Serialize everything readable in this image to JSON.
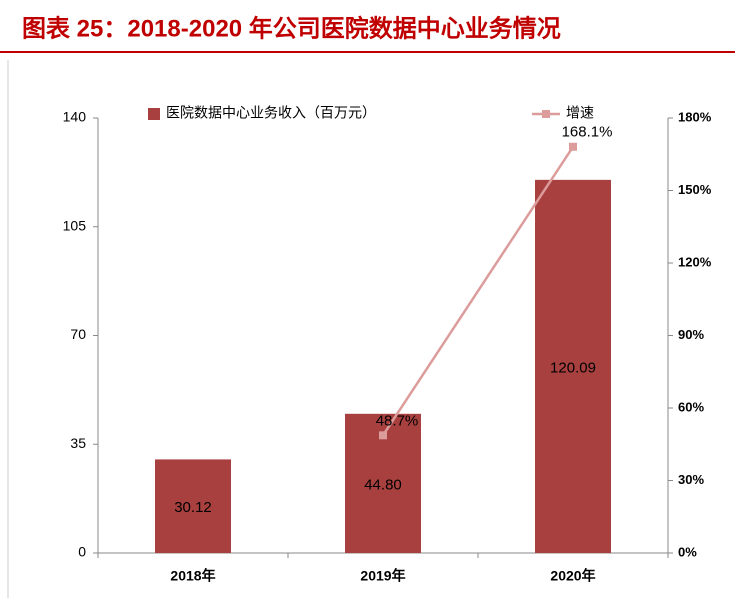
{
  "chart_data": {
    "type": "bar",
    "title": "图表 25：2018-2020 年公司医院数据中心业务情况",
    "categories": [
      "2018年",
      "2019年",
      "2020年"
    ],
    "series": [
      {
        "name": "医院数据中心业务收入（百万元）",
        "type": "bar",
        "color": "#a8403f",
        "values": [
          30.12,
          44.8,
          120.09
        ],
        "value_labels": [
          "30.12",
          "44.80",
          "120.09"
        ]
      },
      {
        "name": "增速",
        "type": "line",
        "axis": "y2",
        "color": "#dc9c9b",
        "values": [
          null,
          48.7,
          168.1
        ],
        "value_labels": [
          null,
          "48.7%",
          "168.1%"
        ]
      }
    ],
    "ylim": [
      0,
      140
    ],
    "yticks": [
      0,
      35,
      70,
      105,
      140
    ],
    "y2lim": [
      0,
      180
    ],
    "y2ticks": [
      {
        "value": 0,
        "label": "0%"
      },
      {
        "value": 30,
        "label": "30%"
      },
      {
        "value": 60,
        "label": "60%"
      },
      {
        "value": 90,
        "label": "90%"
      },
      {
        "value": 120,
        "label": "120%"
      },
      {
        "value": 150,
        "label": "150%"
      },
      {
        "value": 180,
        "label": "180%"
      }
    ],
    "legend": "top",
    "grid": false
  }
}
